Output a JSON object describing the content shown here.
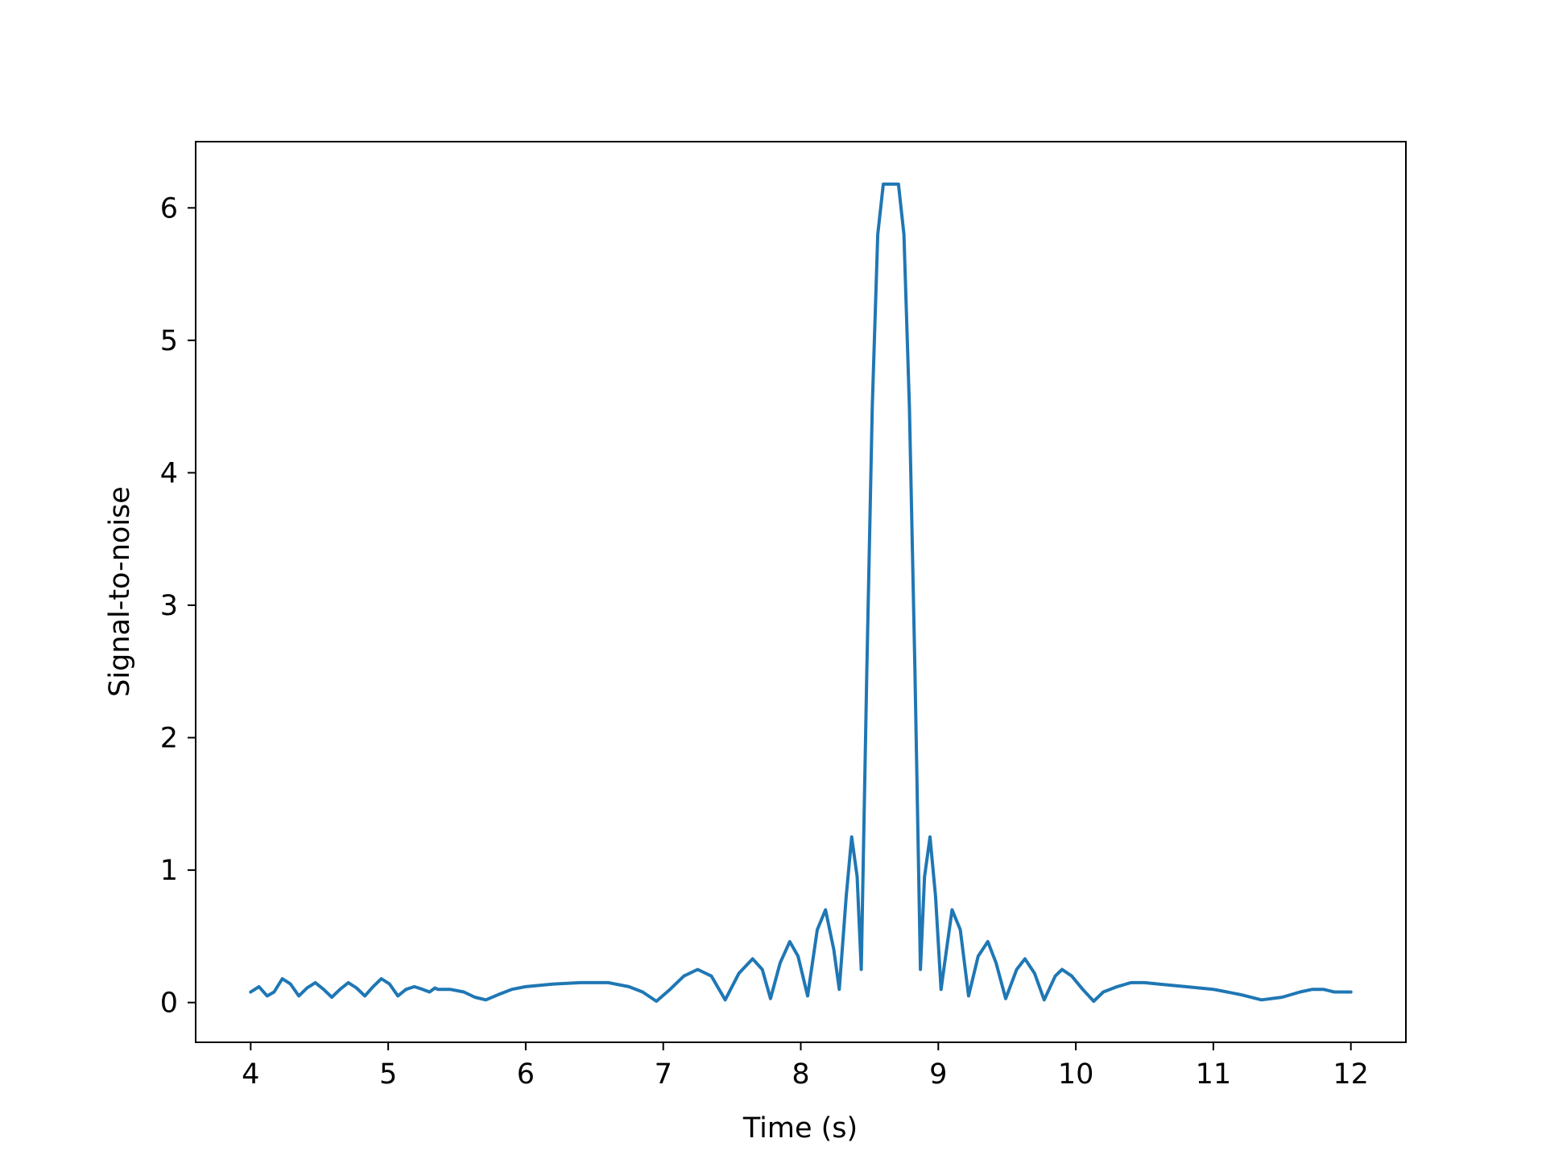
{
  "chart_data": {
    "type": "line",
    "title": "",
    "xlabel": "Time (s)",
    "ylabel": "Signal-to-noise",
    "xlim": [
      3.6,
      12.4
    ],
    "ylim": [
      -0.3,
      6.5
    ],
    "xticks": [
      4,
      5,
      6,
      7,
      8,
      9,
      10,
      11,
      12
    ],
    "xtick_labels": [
      "4",
      "5",
      "6",
      "7",
      "8",
      "9",
      "10",
      "11",
      "12"
    ],
    "yticks": [
      0,
      1,
      2,
      3,
      4,
      5,
      6
    ],
    "ytick_labels": [
      "0",
      "1",
      "2",
      "3",
      "4",
      "5",
      "6"
    ],
    "grid": false,
    "legend": "none",
    "line_color": "#1f77b4",
    "series": [
      {
        "x": [
          4.0,
          4.06,
          4.12,
          4.17,
          4.23,
          4.29,
          4.35,
          4.41,
          4.47,
          4.53,
          4.59,
          4.65,
          4.71,
          4.77,
          4.83,
          4.89,
          4.95,
          5.01,
          5.07,
          5.13,
          5.19,
          5.25,
          5.3,
          5.34,
          5.36,
          5.45,
          5.55,
          5.63,
          5.71,
          5.8,
          5.9,
          6.0,
          6.2,
          6.4,
          6.6,
          6.75,
          6.85,
          6.95,
          7.05,
          7.15,
          7.25,
          7.35,
          7.45,
          7.55,
          7.65,
          7.72,
          7.78,
          7.85,
          7.92,
          7.98,
          8.05,
          8.12,
          8.18,
          8.24,
          8.28,
          8.33,
          8.37,
          8.41,
          8.44,
          8.48,
          8.52,
          8.56,
          8.6,
          8.64,
          8.67,
          8.71,
          8.75,
          8.79,
          8.83,
          8.87,
          8.9,
          8.94,
          8.98,
          9.02,
          9.06,
          9.1,
          9.16,
          9.22,
          9.29,
          9.36,
          9.42,
          9.49,
          9.57,
          9.63,
          9.7,
          9.77,
          9.85,
          9.9,
          9.97,
          10.05,
          10.13,
          10.2,
          10.3,
          10.4,
          10.5,
          10.6,
          10.8,
          11.0,
          11.2,
          11.35,
          11.5,
          11.63,
          11.72,
          11.8,
          11.88,
          11.95,
          12.0
        ],
        "y": [
          0.08,
          0.12,
          0.05,
          0.08,
          0.18,
          0.14,
          0.05,
          0.11,
          0.15,
          0.1,
          0.04,
          0.1,
          0.15,
          0.11,
          0.05,
          0.12,
          0.18,
          0.14,
          0.05,
          0.1,
          0.12,
          0.1,
          0.08,
          0.11,
          0.1,
          0.1,
          0.08,
          0.04,
          0.02,
          0.06,
          0.1,
          0.12,
          0.14,
          0.15,
          0.15,
          0.12,
          0.08,
          0.01,
          0.1,
          0.2,
          0.25,
          0.2,
          0.02,
          0.22,
          0.33,
          0.25,
          0.03,
          0.3,
          0.46,
          0.35,
          0.05,
          0.55,
          0.7,
          0.4,
          0.1,
          0.8,
          1.25,
          0.95,
          0.25,
          2.5,
          4.5,
          5.8,
          6.18,
          6.18,
          6.18,
          6.18,
          5.8,
          4.5,
          2.5,
          0.25,
          0.95,
          1.25,
          0.8,
          0.1,
          0.4,
          0.7,
          0.55,
          0.05,
          0.35,
          0.46,
          0.3,
          0.03,
          0.25,
          0.33,
          0.22,
          0.02,
          0.2,
          0.25,
          0.2,
          0.1,
          0.01,
          0.08,
          0.12,
          0.15,
          0.15,
          0.14,
          0.12,
          0.1,
          0.06,
          0.02,
          0.04,
          0.08,
          0.1,
          0.1,
          0.08,
          0.08,
          0.08
        ]
      }
    ]
  }
}
